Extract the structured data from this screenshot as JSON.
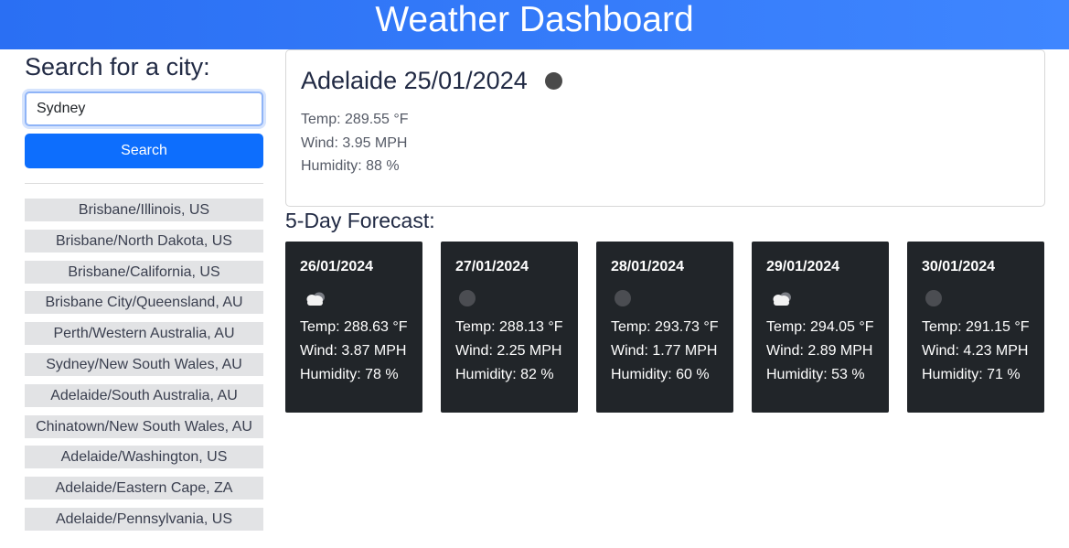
{
  "header": {
    "title": "Weather Dashboard"
  },
  "search": {
    "heading": "Search for a city:",
    "input_value": "Sydney",
    "button_label": "Search"
  },
  "history": [
    "Brisbane/Illinois, US",
    "Brisbane/North Dakota, US",
    "Brisbane/California, US",
    "Brisbane City/Queensland, AU",
    "Perth/Western Australia, AU",
    "Sydney/New South Wales, AU",
    "Adelaide/South Australia, AU",
    "Chinatown/New South Wales, AU",
    "Adelaide/Washington, US",
    "Adelaide/Eastern Cape, ZA",
    "Adelaide/Pennsylvania, US"
  ],
  "current": {
    "title": "Adelaide 25/01/2024",
    "icon": "moon-icon",
    "temp": "Temp: 289.55 °F",
    "wind": "Wind: 3.95 MPH",
    "humidity": "Humidity: 88 %"
  },
  "forecast": {
    "heading": "5-Day Forecast:",
    "days": [
      {
        "date": "26/01/2024",
        "icon": "cloud-icon",
        "temp": "Temp: 288.63 °F",
        "wind": "Wind: 3.87 MPH",
        "humidity": "Humidity: 78 %"
      },
      {
        "date": "27/01/2024",
        "icon": "moon-icon",
        "temp": "Temp: 288.13 °F",
        "wind": "Wind: 2.25 MPH",
        "humidity": "Humidity: 82 %"
      },
      {
        "date": "28/01/2024",
        "icon": "moon-icon",
        "temp": "Temp: 293.73 °F",
        "wind": "Wind: 1.77 MPH",
        "humidity": "Humidity: 60 %"
      },
      {
        "date": "29/01/2024",
        "icon": "cloud-icon",
        "temp": "Temp: 294.05 °F",
        "wind": "Wind: 2.89 MPH",
        "humidity": "Humidity: 53 %"
      },
      {
        "date": "30/01/2024",
        "icon": "moon-icon",
        "temp": "Temp: 291.15 °F",
        "wind": "Wind: 4.23 MPH",
        "humidity": "Humidity: 71 %"
      }
    ]
  },
  "colors": {
    "header": "#2a6ff3",
    "primary_button": "#0d6efd",
    "card_background": "#212529",
    "history_background": "#e2e3e5"
  }
}
